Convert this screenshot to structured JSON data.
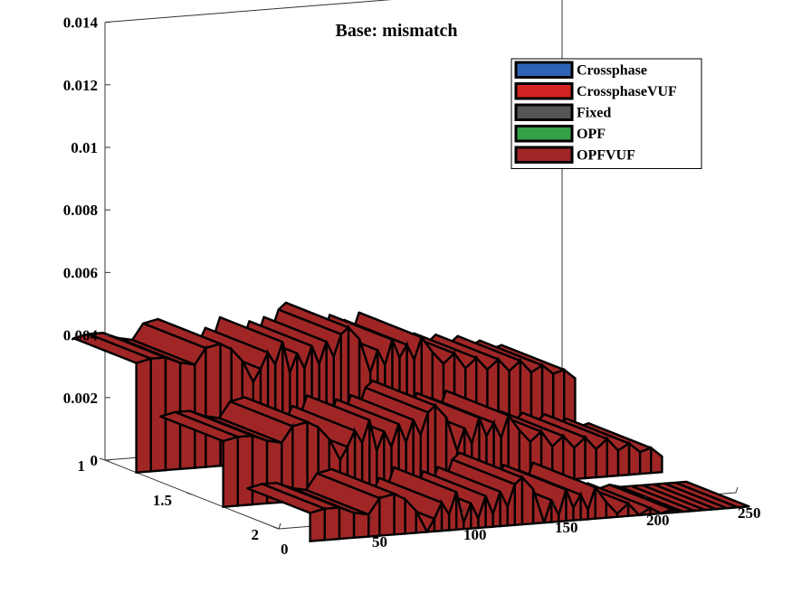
{
  "chart_data": {
    "type": "ribbon3d",
    "title": "Base: mismatch",
    "xlabel": "",
    "ylabel": "",
    "zlabel": "",
    "x_ticks": [
      "0",
      "50",
      "100",
      "150",
      "200",
      "250"
    ],
    "y_ticks": [
      "1",
      "1.5",
      "2"
    ],
    "z_ticks": [
      "0",
      "0.002",
      "0.004",
      "0.006",
      "0.008",
      "0.01",
      "0.012",
      "0.014"
    ],
    "xlim": [
      0,
      250
    ],
    "ylim": [
      1,
      2
    ],
    "zlim": [
      0,
      0.014
    ],
    "grid": false,
    "legend_position": "top-right",
    "series": [
      {
        "name": "Crossphase",
        "color": "#2f63b5"
      },
      {
        "name": "CrossphaseVUF",
        "color": "#d42323"
      },
      {
        "name": "Fixed",
        "color": "#555555"
      },
      {
        "name": "OPF",
        "color": "#35a048"
      },
      {
        "name": "OPFVUF",
        "color": "#a02626"
      }
    ],
    "profile": [
      [
        0,
        0.0035
      ],
      [
        8,
        0.0036
      ],
      [
        16,
        0.0036
      ],
      [
        24,
        0.0034
      ],
      [
        32,
        0.0033
      ],
      [
        38,
        0.0038
      ],
      [
        46,
        0.0039
      ],
      [
        52,
        0.0037
      ],
      [
        58,
        0.0033
      ],
      [
        64,
        0.0026
      ],
      [
        68,
        0.003
      ],
      [
        72,
        0.0035
      ],
      [
        76,
        0.0031
      ],
      [
        80,
        0.0038
      ],
      [
        84,
        0.0028
      ],
      [
        88,
        0.0034
      ],
      [
        92,
        0.0029
      ],
      [
        96,
        0.0036
      ],
      [
        100,
        0.003
      ],
      [
        104,
        0.0037
      ],
      [
        108,
        0.0032
      ],
      [
        112,
        0.0039
      ],
      [
        116,
        0.0041
      ],
      [
        122,
        0.0037
      ],
      [
        128,
        0.0026
      ],
      [
        132,
        0.0033
      ],
      [
        136,
        0.0028
      ],
      [
        140,
        0.0036
      ],
      [
        144,
        0.003
      ],
      [
        148,
        0.0034
      ],
      [
        152,
        0.0029
      ],
      [
        156,
        0.0036
      ],
      [
        162,
        0.0031
      ],
      [
        168,
        0.0027
      ],
      [
        174,
        0.003
      ],
      [
        180,
        0.0025
      ],
      [
        186,
        0.0028
      ],
      [
        192,
        0.0024
      ],
      [
        198,
        0.0027
      ],
      [
        204,
        0.0023
      ],
      [
        210,
        0.0026
      ],
      [
        216,
        0.0022
      ],
      [
        222,
        0.0024
      ],
      [
        228,
        0.0021
      ],
      [
        234,
        0.0022
      ],
      [
        240,
        0.0019
      ]
    ],
    "phase_offsets": [
      0.0035,
      0.0021,
      0.0009
    ]
  }
}
